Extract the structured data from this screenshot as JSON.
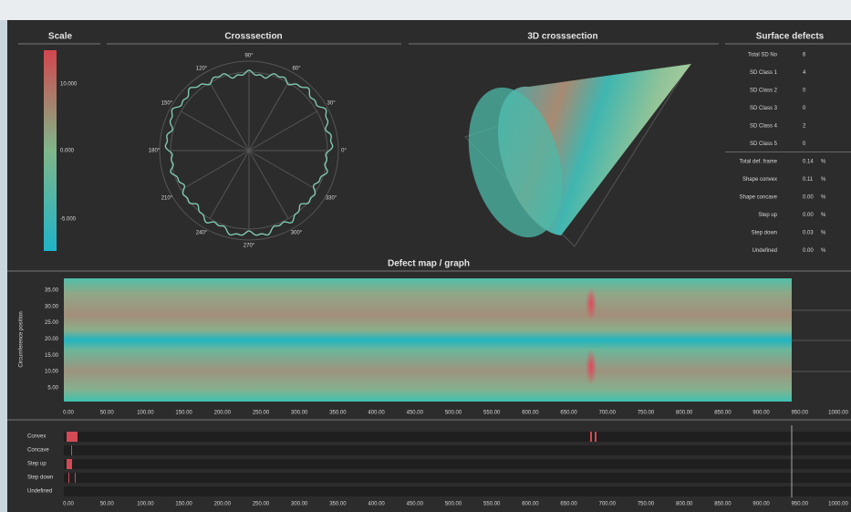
{
  "panels": {
    "scale": "Scale",
    "crosssection": "Crosssection",
    "cross3d": "3D crosssection",
    "surface": "Surface defects"
  },
  "scale_labels": [
    "10.000",
    "0.000",
    "-5.000"
  ],
  "polar_labels": [
    "90°",
    "60°",
    "30°",
    "0°",
    "330°",
    "300°",
    "270°",
    "240°",
    "210°",
    "180°",
    "150°",
    "120°"
  ],
  "surface_defects": [
    {
      "label": "Total SD No",
      "value": "6"
    },
    {
      "label": "SD Class 1",
      "value": "4"
    },
    {
      "label": "SD Class 2",
      "value": "0"
    },
    {
      "label": "SD Class 3",
      "value": "0"
    },
    {
      "label": "SD Class 4",
      "value": "2"
    },
    {
      "label": "SD Class 5",
      "value": "0"
    },
    {
      "label": "Total def. frame",
      "value": "0.14",
      "unit": "%"
    },
    {
      "label": "Shape convex",
      "value": "0.11",
      "unit": "%"
    },
    {
      "label": "Shape concave",
      "value": "0.00",
      "unit": "%"
    },
    {
      "label": "Step up",
      "value": "0.00",
      "unit": "%"
    },
    {
      "label": "Step down",
      "value": "0.03",
      "unit": "%"
    },
    {
      "label": "Undefined",
      "value": "0.00",
      "unit": "%"
    }
  ],
  "defect_map": {
    "title": "Defect map / graph",
    "y_label": "Circumference position",
    "yticks": [
      "35.00",
      "30.00",
      "25.00",
      "20.00",
      "15.00",
      "10.00",
      "5.00"
    ],
    "xticks": [
      "0.00",
      "50.00",
      "100.00",
      "150.00",
      "200.00",
      "250.00",
      "300.00",
      "350.00",
      "400.00",
      "450.00",
      "500.00",
      "550.00",
      "600.00",
      "650.00",
      "700.00",
      "750.00",
      "800.00",
      "850.00",
      "900.00",
      "950.00",
      "1000.00"
    ]
  },
  "graph": {
    "rows": [
      "Convex",
      "Concave",
      "Step up",
      "Step down",
      "Undefined"
    ],
    "xticks": [
      "0.00",
      "50.00",
      "100.00",
      "150.00",
      "200.00",
      "250.00",
      "300.00",
      "350.00",
      "400.00",
      "450.00",
      "500.00",
      "550.00",
      "600.00",
      "650.00",
      "700.00",
      "750.00",
      "800.00",
      "850.00",
      "900.00",
      "950.00",
      "1000.00"
    ]
  }
}
